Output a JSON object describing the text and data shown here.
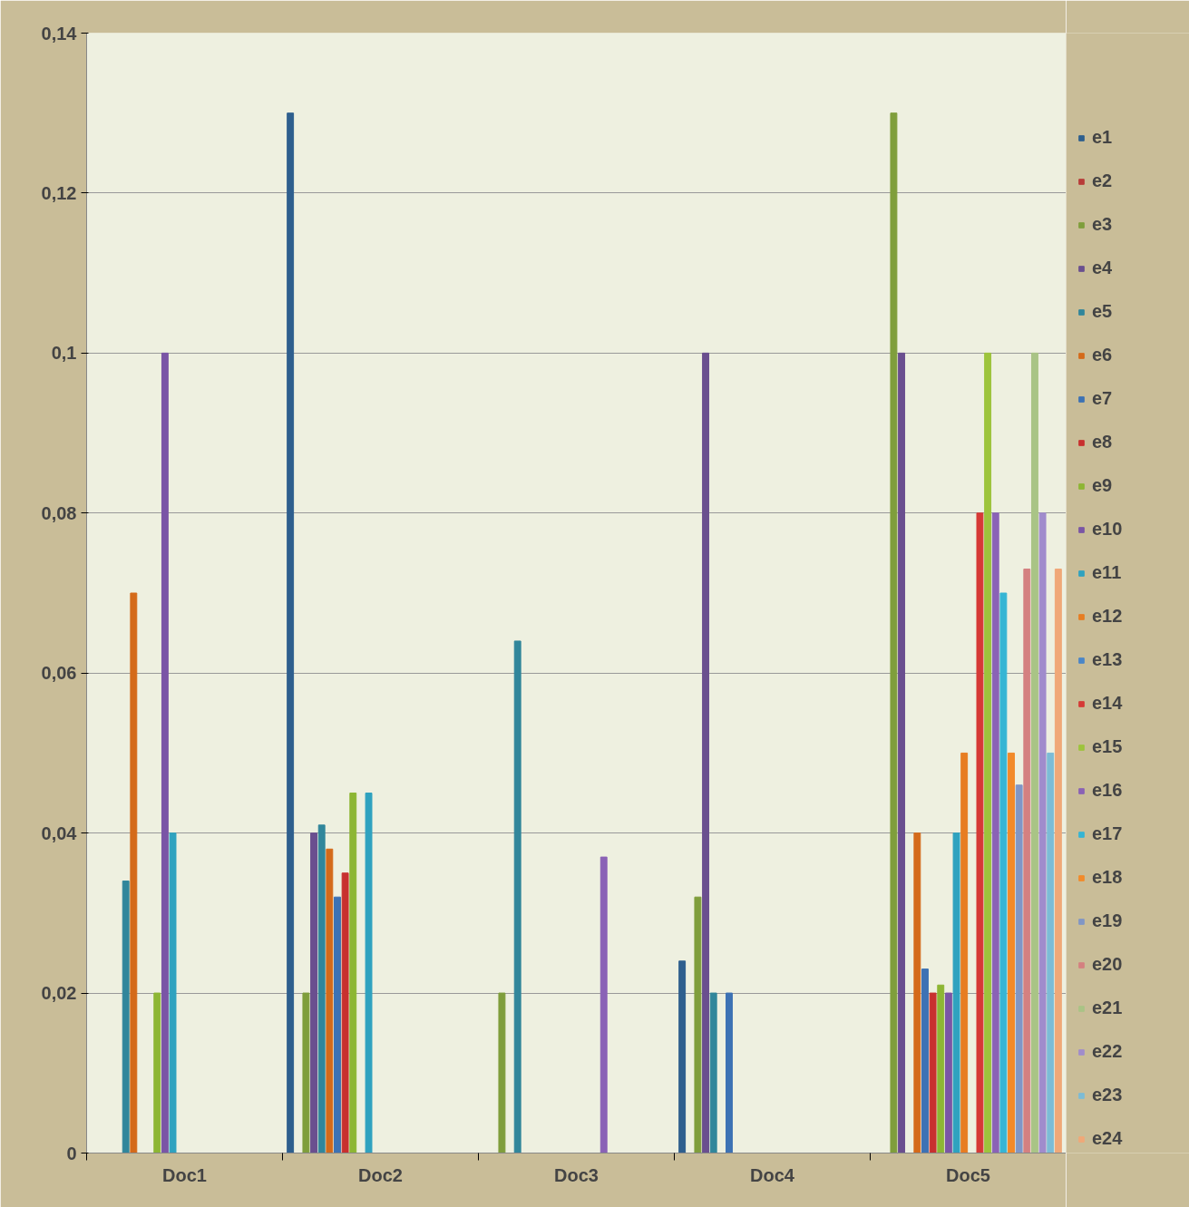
{
  "chart_data": {
    "type": "bar",
    "categories": [
      "Doc1",
      "Doc2",
      "Doc3",
      "Doc4",
      "Doc5"
    ],
    "ylim": [
      0,
      0.14
    ],
    "yticks": [
      0,
      {
        "value": 0.02,
        "label": "0,02"
      },
      {
        "value": 0.04,
        "label": "0,04"
      },
      {
        "value": 0.06,
        "label": "0,06"
      },
      {
        "value": 0.08,
        "label": "0,08"
      },
      {
        "value": 0.1,
        "label": "0,1"
      },
      {
        "value": 0.12,
        "label": "0,12"
      },
      {
        "value": 0.14,
        "label": "0,14"
      }
    ],
    "grid": "y",
    "legend": "right",
    "series": [
      {
        "name": "e1",
        "color": "#2e5f8e",
        "values": [
          null,
          0.13,
          null,
          0.024,
          null
        ]
      },
      {
        "name": "e2",
        "color": "#b83c39",
        "values": [
          null,
          null,
          null,
          null,
          null
        ]
      },
      {
        "name": "e3",
        "color": "#7f9e3c",
        "values": [
          null,
          0.02,
          0.02,
          0.032,
          0.13
        ]
      },
      {
        "name": "e4",
        "color": "#6a4f8f",
        "values": [
          null,
          0.04,
          null,
          0.1,
          0.1
        ]
      },
      {
        "name": "e5",
        "color": "#31869b",
        "values": [
          0.034,
          0.041,
          0.064,
          0.02,
          null
        ]
      },
      {
        "name": "e6",
        "color": "#d46a1a",
        "values": [
          0.07,
          0.038,
          null,
          null,
          0.04
        ]
      },
      {
        "name": "e7",
        "color": "#3d72b4",
        "values": [
          null,
          0.032,
          null,
          0.02,
          0.023
        ]
      },
      {
        "name": "e8",
        "color": "#c8302f",
        "values": [
          null,
          0.035,
          null,
          null,
          0.02
        ]
      },
      {
        "name": "e9",
        "color": "#8db634",
        "values": [
          0.02,
          0.045,
          null,
          null,
          0.021
        ]
      },
      {
        "name": "e10",
        "color": "#7a55a6",
        "values": [
          0.1,
          null,
          null,
          null,
          0.02
        ]
      },
      {
        "name": "e11",
        "color": "#2fa2bf",
        "values": [
          0.04,
          0.045,
          null,
          null,
          0.04
        ]
      },
      {
        "name": "e12",
        "color": "#e77d22",
        "values": [
          null,
          null,
          null,
          null,
          0.05
        ]
      },
      {
        "name": "e13",
        "color": "#4a86c8",
        "values": [
          null,
          null,
          null,
          null,
          null
        ]
      },
      {
        "name": "e14",
        "color": "#d63a36",
        "values": [
          null,
          null,
          null,
          null,
          0.08
        ]
      },
      {
        "name": "e15",
        "color": "#9dc43c",
        "values": [
          null,
          null,
          null,
          null,
          0.1
        ]
      },
      {
        "name": "e16",
        "color": "#8a62b6",
        "values": [
          null,
          null,
          0.037,
          null,
          0.08
        ]
      },
      {
        "name": "e17",
        "color": "#36b5d4",
        "values": [
          null,
          null,
          null,
          null,
          0.07
        ]
      },
      {
        "name": "e18",
        "color": "#f28a2a",
        "values": [
          null,
          null,
          null,
          null,
          0.05
        ]
      },
      {
        "name": "e19",
        "color": "#8096c6",
        "values": [
          null,
          null,
          null,
          null,
          0.046
        ]
      },
      {
        "name": "e20",
        "color": "#d48080",
        "values": [
          null,
          null,
          null,
          null,
          0.073
        ]
      },
      {
        "name": "e21",
        "color": "#a9c486",
        "values": [
          null,
          null,
          null,
          null,
          0.1
        ]
      },
      {
        "name": "e22",
        "color": "#a08ccc",
        "values": [
          null,
          null,
          null,
          null,
          0.08
        ]
      },
      {
        "name": "e23",
        "color": "#7cbcd6",
        "values": [
          null,
          null,
          null,
          null,
          0.05
        ]
      },
      {
        "name": "e24",
        "color": "#f0a878",
        "values": [
          null,
          null,
          null,
          null,
          0.073
        ]
      }
    ]
  }
}
